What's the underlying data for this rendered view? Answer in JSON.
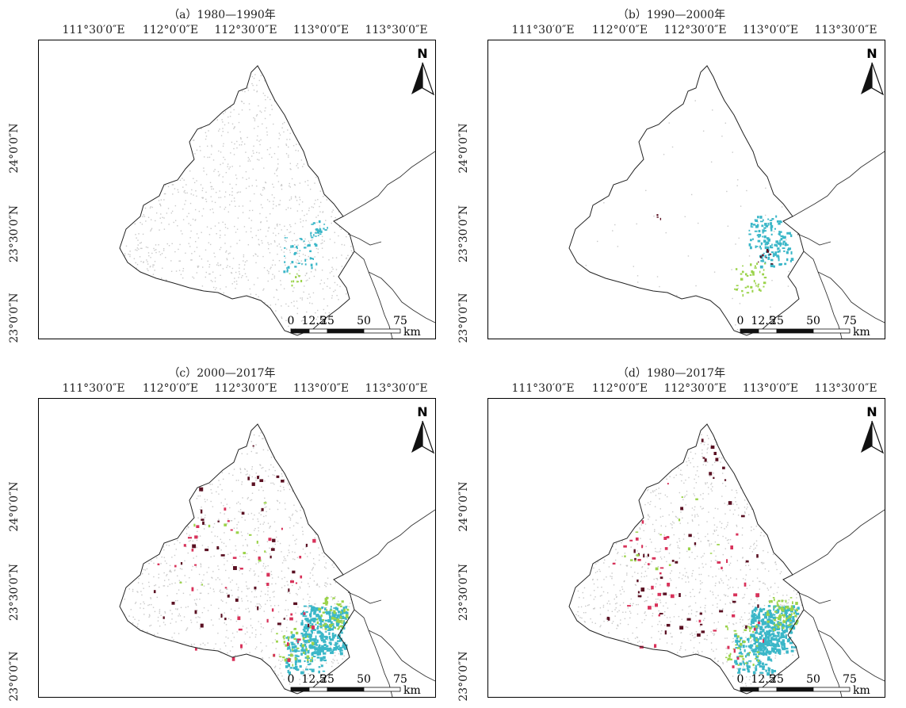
{
  "panels": [
    {
      "title": "（a）1980—1990年"
    },
    {
      "title": "（b）1990—2000年"
    },
    {
      "title": "（c）2000—2017年"
    },
    {
      "title": "（d）1980—2017年"
    }
  ],
  "lon_ticks": [
    "111°30′0″E",
    "112°0′0″E",
    "112°30′0″E",
    "113°0′0″E",
    "113°30′0″E"
  ],
  "lat_ticks": [
    "24°0′0″N",
    "23°30′0″N",
    "23°0′0″N"
  ],
  "north_arrow": {
    "label": "N"
  },
  "scale_bar": {
    "ticks": [
      "0",
      "12.5",
      "25",
      "50",
      "75"
    ],
    "unit": "km"
  },
  "colors": {
    "cyan": "#3bb7c8",
    "green": "#9bd34a",
    "red": "#d8325a",
    "maroon": "#5a1022",
    "gray_dots": "#c9c9c9"
  }
}
